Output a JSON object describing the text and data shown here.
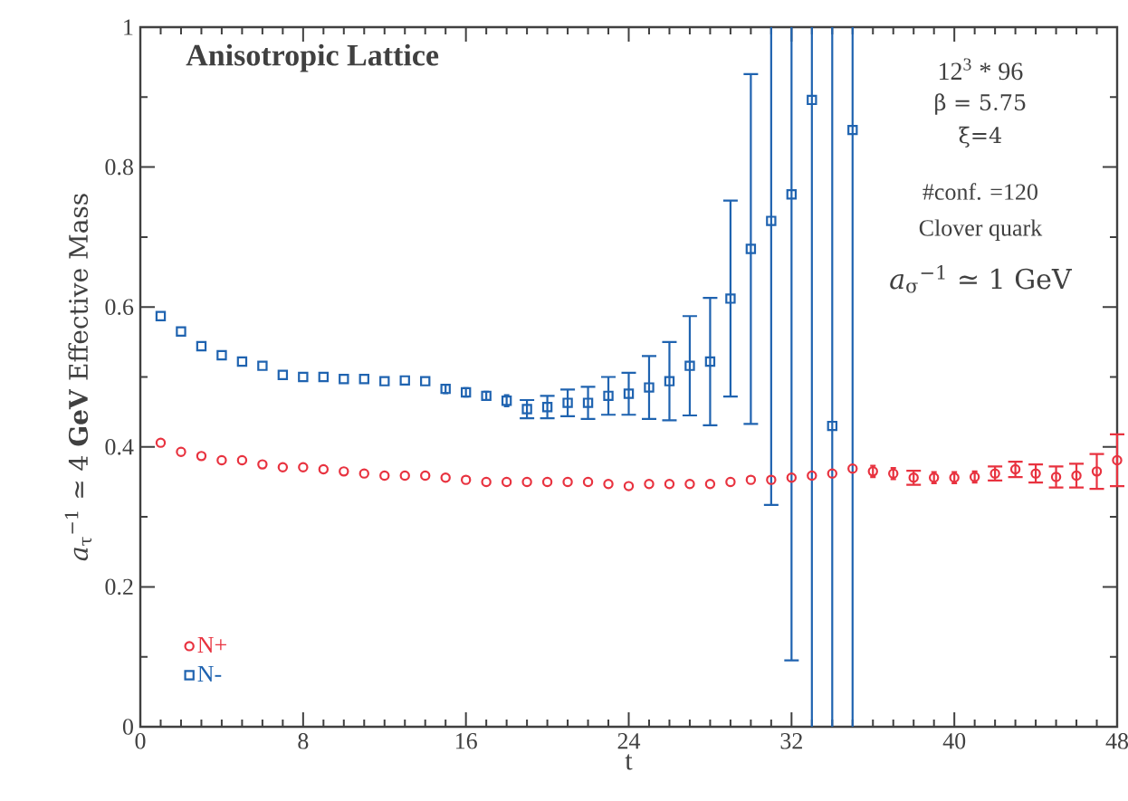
{
  "chart_data": {
    "type": "scatter",
    "title": "Anisotropic Lattice",
    "xlabel": "t",
    "ylabel": "*a*$_{τ}$$^{−1}$ ≃ 4 **GeV**   Effective Mass",
    "annotations": [
      "12$^{3}$ * 96",
      "β = 5.75",
      "ξ=4",
      "#conf. =120",
      "Clover quark",
      "*a*$_{σ}$$^{−1}$ ≃ 1 GeV"
    ],
    "xlim": [
      0,
      48
    ],
    "xticks": [
      0,
      8,
      16,
      24,
      32,
      40,
      48
    ],
    "ylim": [
      0,
      1
    ],
    "yticks": [
      0,
      0.2,
      0.4,
      0.6,
      0.8,
      1
    ],
    "grid": false,
    "legend": "bottom left",
    "series": [
      {
        "name": "N+",
        "color": "#e8323f",
        "marker": "circle",
        "x": [
          1,
          2,
          3,
          4,
          5,
          6,
          7,
          8,
          9,
          10,
          11,
          12,
          13,
          14,
          15,
          16,
          17,
          18,
          19,
          20,
          21,
          22,
          23,
          24,
          25,
          26,
          27,
          28,
          29,
          30,
          31,
          32,
          33,
          34,
          35,
          36,
          37,
          38,
          39,
          40,
          41,
          42,
          43,
          44,
          45,
          46,
          47,
          48
        ],
        "values": [
          0.406,
          0.393,
          0.387,
          0.381,
          0.381,
          0.375,
          0.371,
          0.371,
          0.368,
          0.365,
          0.362,
          0.359,
          0.359,
          0.359,
          0.356,
          0.353,
          0.35,
          0.35,
          0.35,
          0.35,
          0.35,
          0.35,
          0.347,
          0.344,
          0.347,
          0.347,
          0.347,
          0.347,
          0.35,
          0.353,
          0.353,
          0.356,
          0.359,
          0.362,
          0.369,
          0.365,
          0.362,
          0.356,
          0.356,
          0.356,
          0.357,
          0.362,
          0.368,
          0.362,
          0.357,
          0.359,
          0.365,
          0.381
        ],
        "errors": [
          null,
          null,
          null,
          null,
          null,
          null,
          null,
          null,
          null,
          null,
          null,
          null,
          null,
          null,
          null,
          null,
          null,
          null,
          null,
          null,
          null,
          null,
          null,
          null,
          null,
          null,
          null,
          null,
          null,
          null,
          null,
          null,
          null,
          null,
          null,
          0.008,
          0.008,
          0.01,
          0.008,
          0.008,
          0.008,
          0.01,
          0.011,
          0.013,
          0.015,
          0.017,
          0.025,
          0.037
        ]
      },
      {
        "name": "N-",
        "color": "#1f63b0",
        "marker": "square",
        "x": [
          1,
          2,
          3,
          4,
          5,
          6,
          7,
          8,
          9,
          10,
          11,
          12,
          13,
          14,
          15,
          16,
          17,
          18,
          19,
          20,
          21,
          22,
          23,
          24,
          25,
          26,
          27,
          28,
          29,
          30,
          31,
          32,
          33,
          34,
          35
        ],
        "values": [
          0.587,
          0.565,
          0.544,
          0.531,
          0.522,
          0.516,
          0.503,
          0.5,
          0.5,
          0.497,
          0.497,
          0.494,
          0.495,
          0.494,
          0.483,
          0.478,
          0.473,
          0.466,
          0.454,
          0.457,
          0.463,
          0.463,
          0.473,
          0.476,
          0.485,
          0.494,
          0.516,
          0.522,
          0.612,
          0.683,
          0.723,
          0.761,
          0.896,
          0.43,
          0.853
        ],
        "errors": [
          null,
          null,
          null,
          null,
          null,
          null,
          null,
          null,
          null,
          null,
          null,
          null,
          null,
          null,
          0.006,
          0.006,
          0.006,
          0.008,
          0.013,
          0.016,
          0.019,
          0.023,
          0.027,
          0.03,
          0.045,
          0.056,
          0.071,
          0.091,
          0.14,
          0.25,
          [
            0.317,
            1
          ],
          [
            0.095,
            1
          ],
          [
            0,
            1
          ],
          [
            0,
            1
          ],
          [
            0,
            1
          ]
        ]
      }
    ]
  }
}
